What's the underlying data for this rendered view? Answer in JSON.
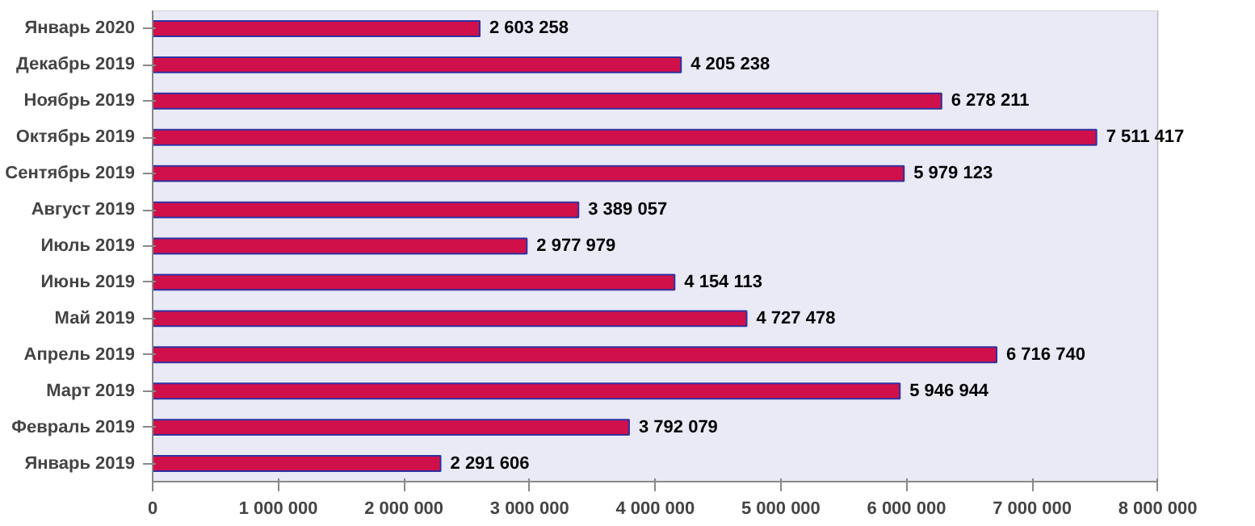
{
  "chart_data": {
    "type": "bar",
    "orientation": "horizontal",
    "categories": [
      "Январь 2020",
      "Декабрь 2019",
      "Ноябрь 2019",
      "Октябрь 2019",
      "Сентябрь 2019",
      "Август 2019",
      "Июль 2019",
      "Июнь 2019",
      "Май 2019",
      "Апрель 2019",
      "Март 2019",
      "Февраль 2019",
      "Январь 2019"
    ],
    "values": [
      2603258,
      4205238,
      6278211,
      7511417,
      5979123,
      3389057,
      2977979,
      4154113,
      4727478,
      6716740,
      5946944,
      3792079,
      2291606
    ],
    "color": "#d0104a",
    "xlim": [
      0,
      8000000
    ],
    "xticks": [
      0,
      {
        "value": 1000000,
        "label": "1 000 000"
      },
      {
        "value": 2000000,
        "label": "2 000 000"
      },
      {
        "value": 3000000,
        "label": "3 000 000"
      },
      {
        "value": 4000000,
        "label": "4 000 000"
      },
      {
        "value": 5000000,
        "label": "5 000 000"
      },
      {
        "value": 6000000,
        "label": "6 000 000"
      },
      {
        "value": 7000000,
        "label": "7 000 000"
      },
      {
        "value": 8000000,
        "label": "8 000 000"
      }
    ],
    "grid": "x",
    "data_labels": true
  }
}
